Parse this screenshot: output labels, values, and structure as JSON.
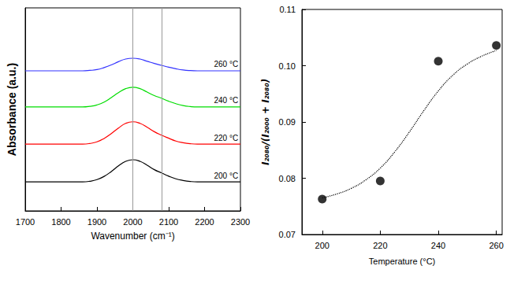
{
  "chart_data": [
    {
      "type": "line",
      "x_label": "Wavenumber (cm⁻¹)",
      "y_label": "Absorbance (a.u.)",
      "x": [
        1700,
        1720,
        1740,
        1760,
        1780,
        1800,
        1820,
        1840,
        1860,
        1880,
        1900,
        1920,
        1940,
        1960,
        1980,
        2000,
        2020,
        2040,
        2060,
        2080,
        2100,
        2120,
        2140,
        2160,
        2180,
        2200,
        2220,
        2240,
        2260,
        2280,
        2300
      ],
      "series": [
        {
          "name": "200 °C",
          "color": "#000000",
          "values": [
            1.43,
            1.43,
            1.43,
            1.43,
            1.43,
            1.43,
            1.43,
            1.43,
            1.43,
            1.46,
            1.54,
            1.7,
            1.94,
            2.22,
            2.44,
            2.52,
            2.44,
            2.25,
            2.03,
            1.87,
            1.71,
            1.58,
            1.5,
            1.45,
            1.43,
            1.43,
            1.43,
            1.43,
            1.43,
            1.43,
            1.43
          ]
        },
        {
          "name": "220 °C",
          "color": "#ff0000",
          "values": [
            3.29,
            3.29,
            3.29,
            3.29,
            3.29,
            3.29,
            3.29,
            3.29,
            3.29,
            3.32,
            3.4,
            3.57,
            3.81,
            4.08,
            4.31,
            4.39,
            4.31,
            4.12,
            3.9,
            3.73,
            3.58,
            3.44,
            3.36,
            3.31,
            3.29,
            3.29,
            3.29,
            3.29,
            3.29,
            3.29,
            3.29
          ]
        },
        {
          "name": "240 °C",
          "color": "#00dd00",
          "values": [
            5.12,
            5.12,
            5.12,
            5.12,
            5.12,
            5.12,
            5.12,
            5.12,
            5.12,
            5.15,
            5.22,
            5.36,
            5.58,
            5.82,
            6.02,
            6.09,
            6.02,
            5.85,
            5.68,
            5.55,
            5.4,
            5.28,
            5.19,
            5.14,
            5.12,
            5.12,
            5.12,
            5.12,
            5.12,
            5.12,
            5.12
          ]
        },
        {
          "name": "260 °C",
          "color": "#3333ff",
          "values": [
            6.9,
            6.9,
            6.9,
            6.9,
            6.9,
            6.9,
            6.9,
            6.9,
            6.9,
            6.92,
            6.96,
            7.06,
            7.19,
            7.35,
            7.48,
            7.52,
            7.48,
            7.37,
            7.26,
            7.17,
            7.08,
            7.0,
            6.94,
            6.91,
            6.9,
            6.9,
            6.9,
            6.9,
            6.9,
            6.9,
            6.9
          ]
        }
      ],
      "xlim": [
        1700,
        2300
      ],
      "xticks": [
        1700,
        1800,
        1900,
        2000,
        2100,
        2200,
        2300
      ],
      "ylim": [
        0,
        10
      ],
      "tick_labels": "x",
      "vertical_lines": [
        2000,
        2080
      ],
      "grid": false
    },
    {
      "type": "scatter",
      "x_label": "Temperature (°C)",
      "y_label": "I₂₀₈₀/(I₂₀₀₀ + I₂₀₈₀)",
      "series": [
        {
          "type": "scatter",
          "marker": "circle",
          "color": "#000000",
          "x": [
            200,
            220,
            240,
            260
          ],
          "values": [
            0.0763,
            0.0795,
            0.1008,
            0.1036
          ]
        },
        {
          "type": "line",
          "line_style": "dotted",
          "color": "#000000",
          "x": [
            200,
            205,
            210,
            215,
            220,
            225,
            230,
            235,
            240,
            245,
            250,
            255,
            260
          ],
          "values": [
            0.0765,
            0.0772,
            0.0782,
            0.0797,
            0.0818,
            0.0847,
            0.0882,
            0.092,
            0.0955,
            0.0983,
            0.1003,
            0.1017,
            0.1027
          ]
        }
      ],
      "xlim": [
        193,
        262
      ],
      "xticks": [
        200,
        220,
        240,
        260
      ],
      "ylim": [
        0.07,
        0.11
      ],
      "yticks": [
        0.07,
        0.08,
        0.09,
        {
          "value": 0.1,
          "label": "0.10"
        },
        0.11
      ],
      "grid": false
    }
  ]
}
